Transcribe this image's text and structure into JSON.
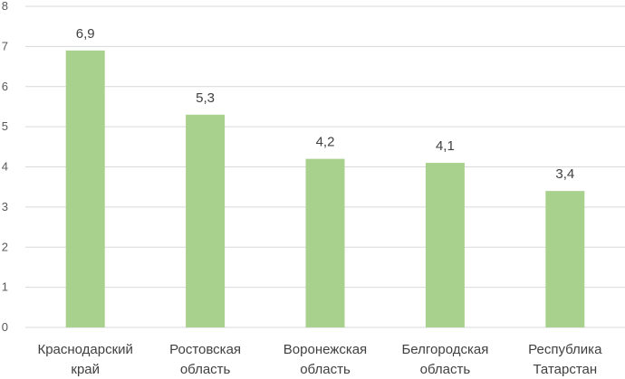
{
  "chart_data": {
    "type": "bar",
    "title": "",
    "xlabel": "",
    "ylabel": "",
    "categories": [
      [
        "Краснодарский",
        "край"
      ],
      [
        "Ростовская",
        "область"
      ],
      [
        "Воронежская",
        "область"
      ],
      [
        "Белгородская",
        "область"
      ],
      [
        "Республика",
        "Татарстан"
      ]
    ],
    "values": [
      6.9,
      5.3,
      4.2,
      4.1,
      3.4
    ],
    "value_labels": [
      "6,9",
      "5,3",
      "4,2",
      "4,1",
      "3,4"
    ],
    "ylim": [
      0,
      8
    ],
    "yticks": [
      0,
      1,
      2,
      3,
      4,
      5,
      6,
      7,
      8
    ],
    "grid": true,
    "legend": "none",
    "bar_color": "#a9d18e",
    "grid_color": "#d9d9d9"
  }
}
